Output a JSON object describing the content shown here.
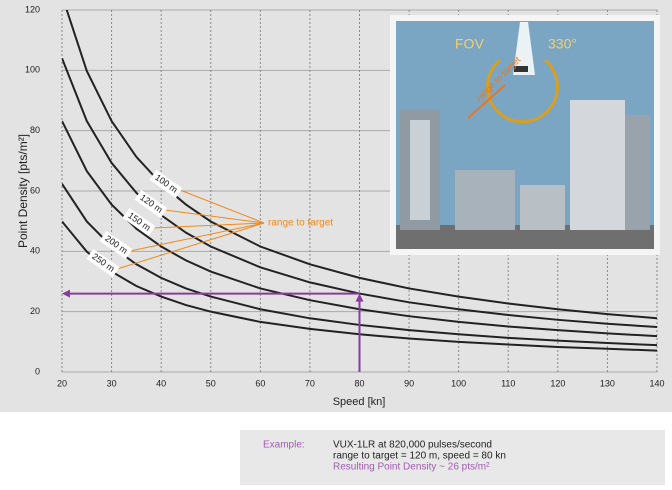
{
  "chart_data": {
    "type": "line",
    "xlabel": "Speed [kn]",
    "ylabel": "Point Density [pts/m²]",
    "x": [
      20,
      25,
      30,
      35,
      40,
      45,
      50,
      60,
      70,
      80,
      90,
      100,
      110,
      120,
      130,
      140
    ],
    "series": [
      {
        "name": "100 m",
        "color": "#222222",
        "values": [
          124.8,
          99.8,
          83.2,
          71.3,
          62.4,
          55.5,
          49.9,
          41.6,
          35.7,
          31.2,
          27.7,
          25.0,
          22.7,
          20.8,
          19.2,
          17.8
        ]
      },
      {
        "name": "120 m",
        "color": "#222222",
        "values": [
          104,
          83.2,
          69.3,
          59.4,
          52,
          46.2,
          41.6,
          34.7,
          29.7,
          26,
          23.1,
          20.8,
          18.9,
          17.3,
          16,
          14.9
        ]
      },
      {
        "name": "150 m",
        "color": "#222222",
        "values": [
          83.2,
          66.6,
          55.5,
          47.5,
          41.6,
          37,
          33.3,
          27.7,
          23.8,
          20.8,
          18.5,
          16.6,
          15.1,
          13.9,
          12.8,
          11.9
        ]
      },
      {
        "name": "200 m",
        "color": "#222222",
        "values": [
          62.4,
          49.9,
          41.6,
          35.7,
          31.2,
          27.7,
          25,
          20.8,
          17.8,
          15.6,
          13.9,
          12.5,
          11.3,
          10.4,
          9.6,
          8.9
        ]
      },
      {
        "name": "250 m",
        "color": "#222222",
        "values": [
          49.9,
          39.9,
          33.3,
          28.5,
          25,
          22.2,
          20,
          16.6,
          14.3,
          12.5,
          11.1,
          10,
          9.1,
          8.3,
          7.7,
          7.1
        ]
      }
    ],
    "annotation": "range to target",
    "marker": {
      "x": 80,
      "y": 26,
      "color": "#8b3a9e"
    },
    "xlim": [
      20,
      140
    ],
    "xticks": [
      20,
      30,
      40,
      50,
      60,
      70,
      80,
      90,
      100,
      110,
      120,
      130,
      140
    ],
    "ylim": [
      0,
      120
    ],
    "yticks": [
      0,
      20,
      40,
      60,
      80,
      100,
      120
    ],
    "grid": true
  },
  "inset": {
    "fov": "FOV",
    "angle": "330°",
    "range": "range to target"
  },
  "example": {
    "label": "Example:",
    "lines": [
      "VUX-1LR at 820,000 pulses/second",
      "range to target = 120 m, speed = 80 kn"
    ],
    "result": "Resulting Point Density ~ 26 pts/m²"
  }
}
